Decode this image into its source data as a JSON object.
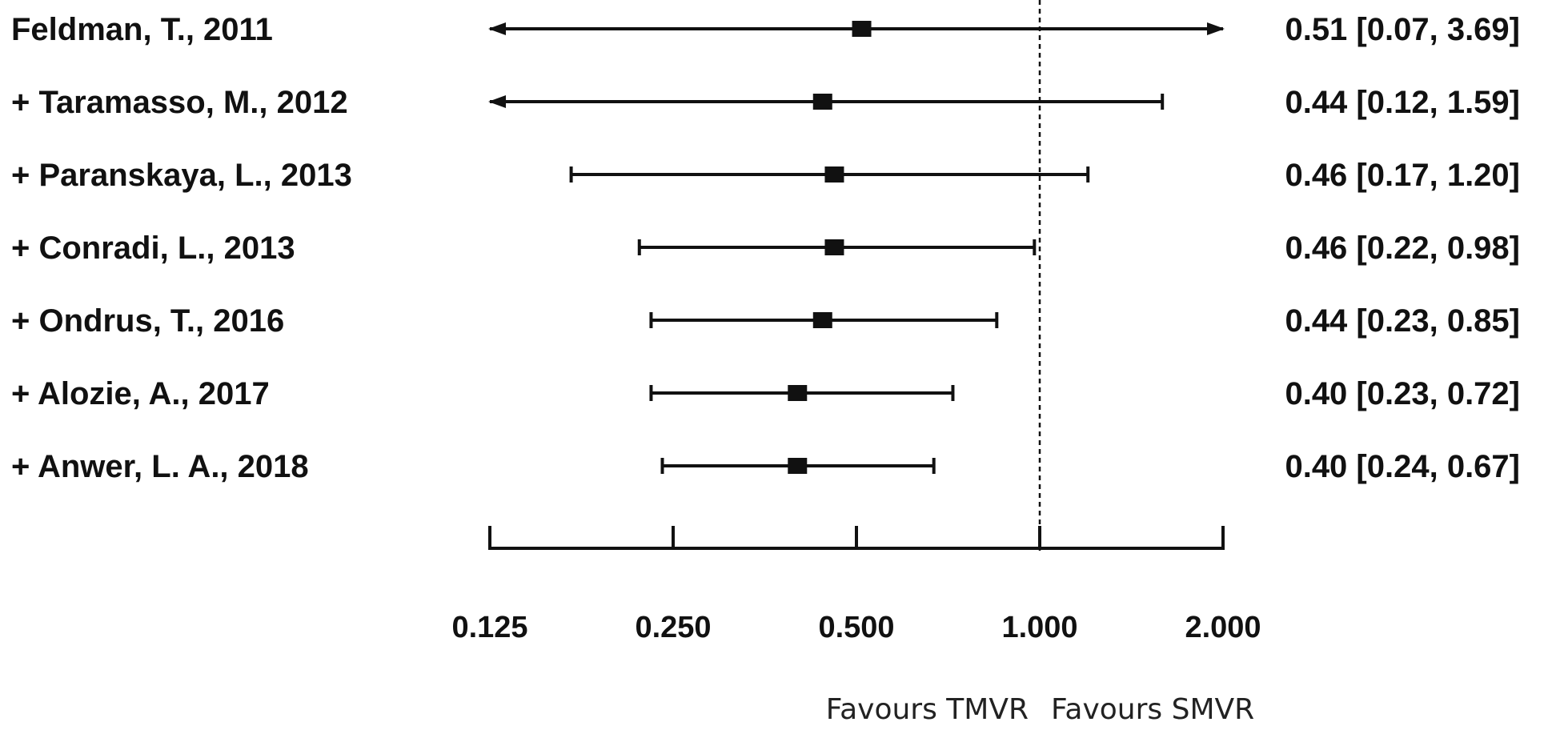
{
  "chart_data": {
    "type": "forest",
    "x_scale": "log2",
    "xlim": [
      0.125,
      2.0
    ],
    "reference_line": 1.0,
    "ticks": [
      0.125,
      0.25,
      0.5,
      1.0,
      2.0
    ],
    "tick_labels": [
      "0.125",
      "0.250",
      "0.500",
      "1.000",
      "2.000"
    ],
    "favours_left": "Favours TMVR",
    "favours_right": "Favours SMVR",
    "studies": [
      {
        "label": "Feldman, T., 2011",
        "estimate": 0.51,
        "lower": 0.07,
        "upper": 3.69,
        "ci_text": "0.51 [0.07, 3.69]"
      },
      {
        "label": "+ Taramasso, M., 2012",
        "estimate": 0.44,
        "lower": 0.12,
        "upper": 1.59,
        "ci_text": "0.44 [0.12, 1.59]"
      },
      {
        "label": "+ Paranskaya, L., 2013",
        "estimate": 0.46,
        "lower": 0.17,
        "upper": 1.2,
        "ci_text": "0.46 [0.17, 1.20]"
      },
      {
        "label": "+ Conradi, L., 2013",
        "estimate": 0.46,
        "lower": 0.22,
        "upper": 0.98,
        "ci_text": "0.46 [0.22, 0.98]"
      },
      {
        "label": "+ Ondrus, T., 2016",
        "estimate": 0.44,
        "lower": 0.23,
        "upper": 0.85,
        "ci_text": "0.44 [0.23, 0.85]"
      },
      {
        "label": "+ Alozie, A., 2017",
        "estimate": 0.4,
        "lower": 0.23,
        "upper": 0.72,
        "ci_text": "0.40 [0.23, 0.72]"
      },
      {
        "label": "+ Anwer, L. A., 2018",
        "estimate": 0.4,
        "lower": 0.24,
        "upper": 0.67,
        "ci_text": "0.40 [0.24, 0.67]"
      }
    ]
  }
}
